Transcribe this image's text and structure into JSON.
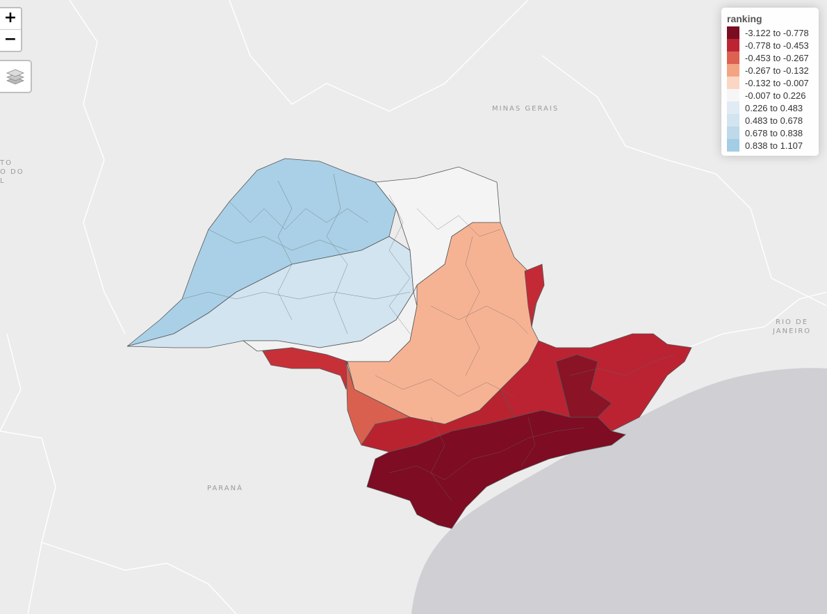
{
  "controls": {
    "zoom_in": "+",
    "zoom_out": "−"
  },
  "place_labels": {
    "minas_gerais": "MINAS GERAIS",
    "parana": "PARANÁ",
    "rio_de_janeiro": "RIO DE\nJANEIRO",
    "mato_grosso_do_sul": "TO\nO DO\nL"
  },
  "legend": {
    "title": "ranking",
    "items": [
      {
        "label": "-3.122 to -0.778",
        "color": "#7b0d22"
      },
      {
        "label": "-0.778 to -0.453",
        "color": "#bc2433"
      },
      {
        "label": "-0.453 to -0.267",
        "color": "#dc6151"
      },
      {
        "label": "-0.267 to -0.132",
        "color": "#f3a482"
      },
      {
        "label": "-0.132 to -0.007",
        "color": "#fbd6c4"
      },
      {
        "label": "-0.007 to 0.226",
        "color": "#f6f6f6"
      },
      {
        "label": "0.226 to 0.483",
        "color": "#e0ebf4"
      },
      {
        "label": "0.483 to 0.678",
        "color": "#d1e4f0"
      },
      {
        "label": "0.678 to 0.838",
        "color": "#bdd9ea"
      },
      {
        "label": "0.838 to 1.107",
        "color": "#a3cde4"
      }
    ]
  },
  "colors": {
    "background": "#ececec",
    "ocean": "#cfcfd4",
    "border": "#555555",
    "state_line": "#ffffff"
  }
}
